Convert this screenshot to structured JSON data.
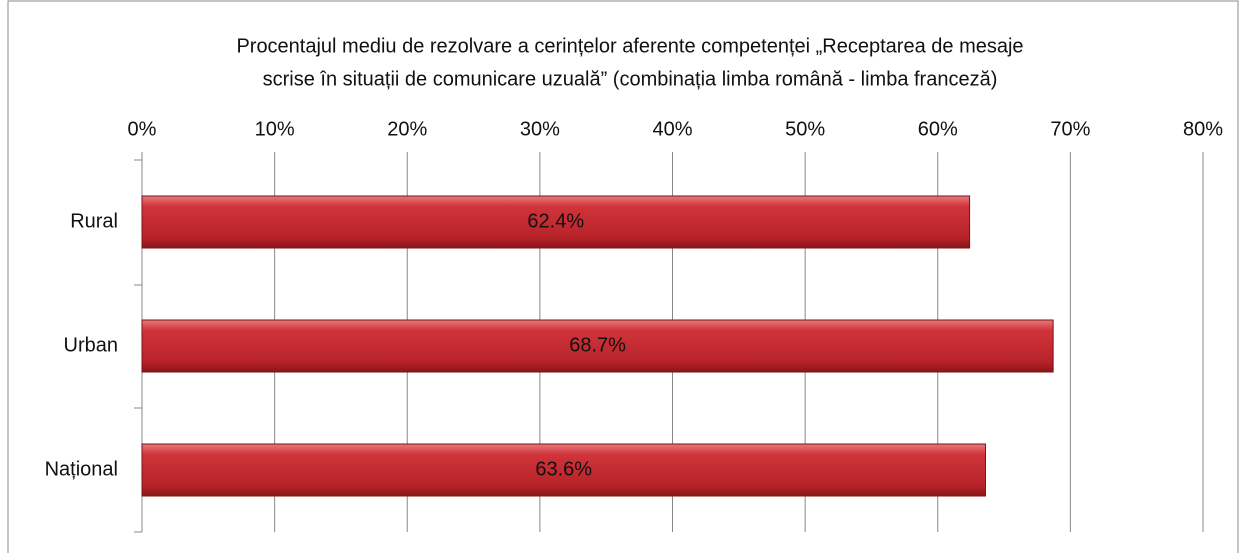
{
  "chart_data": {
    "type": "bar",
    "orientation": "horizontal",
    "title": [
      "Procentajul mediu de rezolvare a cerințelor aferente competenței „Receptarea de mesaje",
      "scrise în situații de comunicare uzuală” (combinația limba română - limba franceză)"
    ],
    "categories": [
      "Rural",
      "Urban",
      "Național"
    ],
    "values": [
      62.4,
      68.7,
      63.6
    ],
    "value_labels": [
      "62.4%",
      "68.7%",
      "63.6%"
    ],
    "color": "#c0272d",
    "xlim": [
      0,
      80
    ],
    "xticks": [
      {
        "value": 0,
        "label": "0%"
      },
      {
        "value": 10,
        "label": "10%"
      },
      {
        "value": 20,
        "label": "20%"
      },
      {
        "value": 30,
        "label": "30%"
      },
      {
        "value": 40,
        "label": "40%"
      },
      {
        "value": 50,
        "label": "50%"
      },
      {
        "value": 60,
        "label": "60%"
      },
      {
        "value": 70,
        "label": "70%"
      },
      {
        "value": 80,
        "label": "80%"
      }
    ],
    "grid": true
  }
}
